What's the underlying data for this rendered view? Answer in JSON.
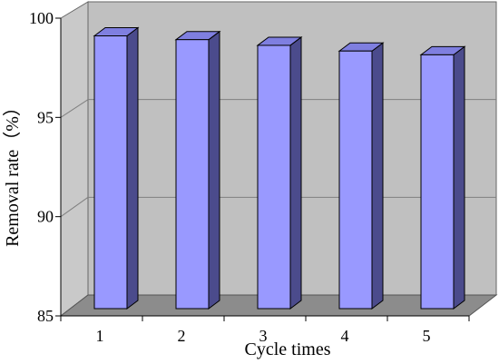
{
  "chart_data": {
    "type": "bar",
    "style": "3d",
    "categories": [
      "1",
      "2",
      "3",
      "4",
      "5"
    ],
    "values": [
      99.4,
      99.2,
      98.9,
      98.6,
      98.4
    ],
    "xlabel": "Cycle times",
    "ylabel": "Removal rate（%）",
    "ylim": [
      85,
      100
    ],
    "yticks": [
      "85",
      "90",
      "95",
      "100"
    ],
    "grid": true,
    "legend": "none",
    "colors": {
      "bar_front": "#9999ff",
      "bar_top": "#7f7fe0",
      "bar_side": "#4b4b8c",
      "back_wall": "#c0c0c0",
      "side_wall": "#c9c9c9",
      "floor": "#8c8c8c",
      "gridline": "#808080"
    }
  }
}
